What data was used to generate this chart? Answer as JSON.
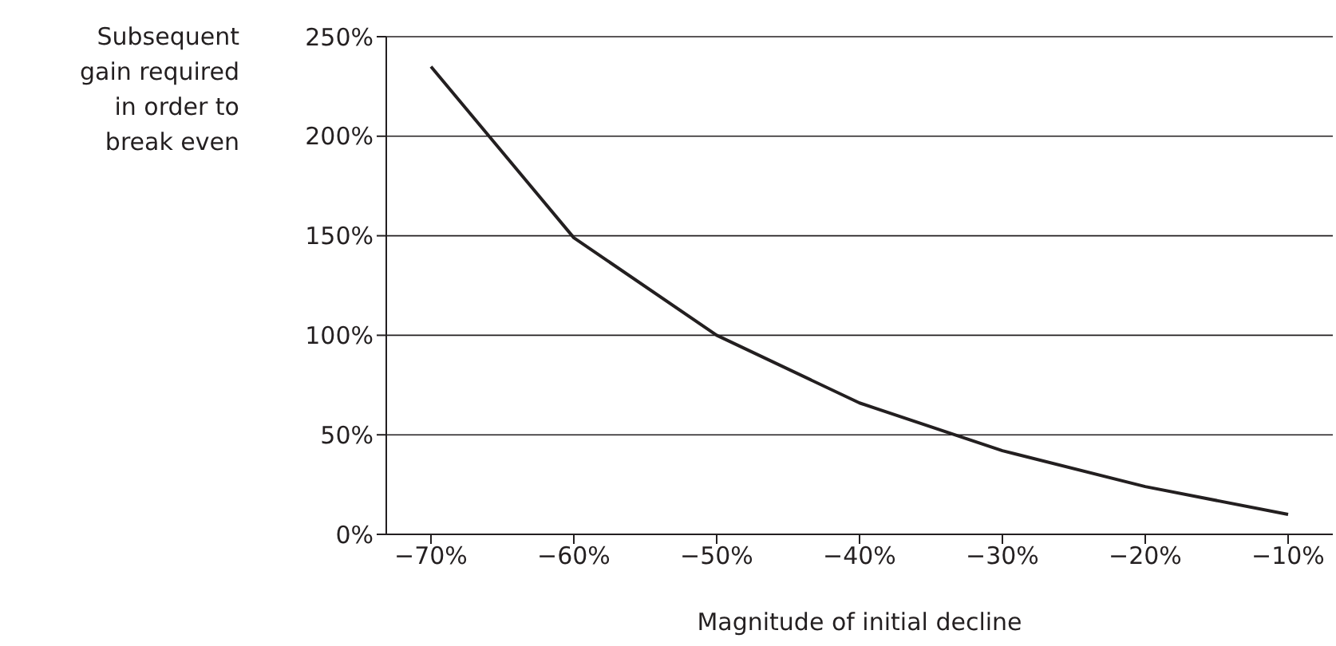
{
  "chart_data": {
    "type": "line",
    "ylabel": "Subsequent gain required in order to break even",
    "xlabel": "Magnitude of initial decline",
    "categories": [
      "−70%",
      "−60%",
      "−50%",
      "−40%",
      "−30%",
      "−20%",
      "−10%"
    ],
    "series": [
      {
        "color": "#231f20",
        "values": [
          235,
          149,
          100,
          66,
          42,
          24,
          10
        ]
      }
    ],
    "ylim": [
      0,
      250
    ],
    "yticks": [
      {
        "value": 0,
        "label": "0%"
      },
      {
        "value": 50,
        "label": "50%"
      },
      {
        "value": 100,
        "label": "100%"
      },
      {
        "value": 150,
        "label": "150%"
      },
      {
        "value": 200,
        "label": "200%"
      },
      {
        "value": 250,
        "label": "250%"
      }
    ],
    "grid": "y",
    "legend": false,
    "marker": "none",
    "line_style": "solid"
  }
}
